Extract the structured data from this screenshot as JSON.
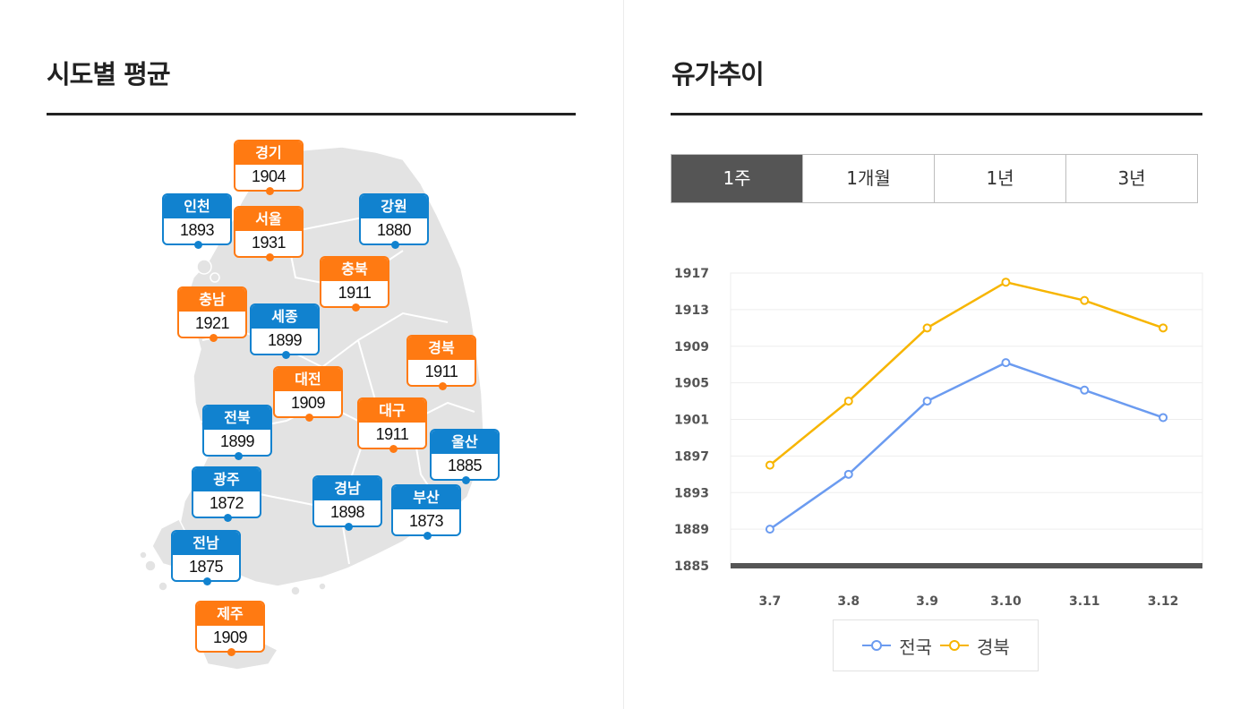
{
  "left": {
    "title": "시도별 평균",
    "regions": [
      {
        "name": "경기",
        "price": "1904",
        "color": "orange"
      },
      {
        "name": "인천",
        "price": "1893",
        "color": "blue"
      },
      {
        "name": "서울",
        "price": "1931",
        "color": "orange"
      },
      {
        "name": "강원",
        "price": "1880",
        "color": "blue"
      },
      {
        "name": "충북",
        "price": "1911",
        "color": "orange"
      },
      {
        "name": "충남",
        "price": "1921",
        "color": "orange"
      },
      {
        "name": "세종",
        "price": "1899",
        "color": "blue"
      },
      {
        "name": "경북",
        "price": "1911",
        "color": "orange"
      },
      {
        "name": "대전",
        "price": "1909",
        "color": "orange"
      },
      {
        "name": "대구",
        "price": "1911",
        "color": "orange"
      },
      {
        "name": "전북",
        "price": "1899",
        "color": "blue"
      },
      {
        "name": "울산",
        "price": "1885",
        "color": "blue"
      },
      {
        "name": "광주",
        "price": "1872",
        "color": "blue"
      },
      {
        "name": "경남",
        "price": "1898",
        "color": "blue"
      },
      {
        "name": "부산",
        "price": "1873",
        "color": "blue"
      },
      {
        "name": "전남",
        "price": "1875",
        "color": "blue"
      },
      {
        "name": "제주",
        "price": "1909",
        "color": "orange"
      }
    ]
  },
  "right": {
    "title": "유가추이",
    "tabs": [
      {
        "label": "1주",
        "active": true
      },
      {
        "label": "1개월",
        "active": false
      },
      {
        "label": "1년",
        "active": false
      },
      {
        "label": "3년",
        "active": false
      }
    ]
  },
  "chart_data": {
    "type": "line",
    "categories": [
      "3.7",
      "3.8",
      "3.9",
      "3.10",
      "3.11",
      "3.12"
    ],
    "series": [
      {
        "name": "전국",
        "color": "#6b9bf0",
        "values": [
          1889,
          1895,
          1903,
          1907.2,
          1904.2,
          1901.2
        ]
      },
      {
        "name": "경북",
        "color": "#f7b500",
        "values": [
          1896,
          1903,
          1911,
          1916,
          1914,
          1911
        ]
      }
    ],
    "yticks": [
      1885,
      1889,
      1893,
      1897,
      1901,
      1905,
      1909,
      1913,
      1917
    ],
    "ylim": [
      1885,
      1917
    ],
    "grid": true,
    "legend": "bottom"
  },
  "colors": {
    "orange": "#ff7a12",
    "blue": "#1182cf",
    "tab_active": "#555555",
    "map_fill": "#e3e3e3"
  }
}
